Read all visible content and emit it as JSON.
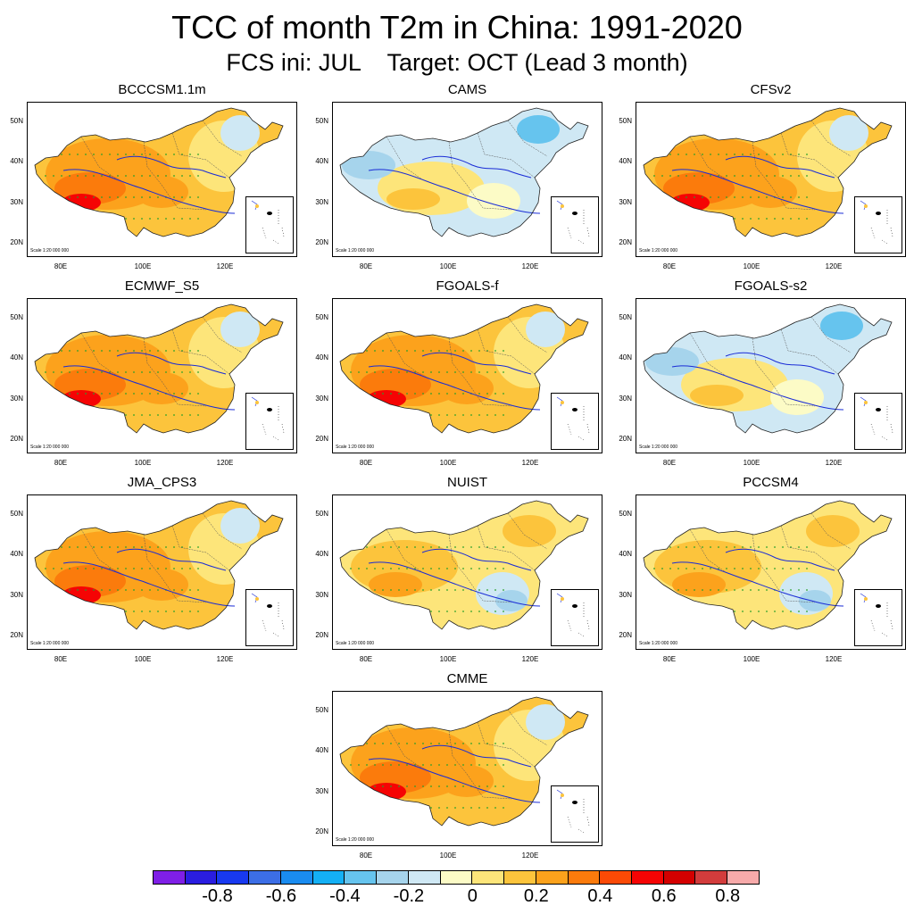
{
  "title": "TCC of month T2m in China: 1991-2020",
  "subtitle": "FCS ini: JUL    Target: OCT (Lead 3 month)",
  "lat_labels": [
    "50N",
    "40N",
    "30N",
    "20N"
  ],
  "lon_labels": [
    "80E",
    "100E",
    "120E"
  ],
  "scale_text": "Scale 1:20 000 000",
  "panels": [
    {
      "name": "BCCCSM1.1m",
      "skill": "high"
    },
    {
      "name": "CAMS",
      "skill": "low"
    },
    {
      "name": "CFSv2",
      "skill": "high"
    },
    {
      "name": "ECMWF_S5",
      "skill": "high"
    },
    {
      "name": "FGOALS-f",
      "skill": "high"
    },
    {
      "name": "FGOALS-s2",
      "skill": "low"
    },
    {
      "name": "JMA_CPS3",
      "skill": "high"
    },
    {
      "name": "NUIST",
      "skill": "mid"
    },
    {
      "name": "PCCSM4",
      "skill": "mid"
    },
    {
      "name": "CMME",
      "skill": "high"
    }
  ],
  "colorbar": {
    "colors": [
      "#7f1fe6",
      "#2a1de0",
      "#1839f0",
      "#3c6ee6",
      "#1a8cf0",
      "#14b0f5",
      "#66c4ee",
      "#a6d4ec",
      "#cfe8f4",
      "#fcfbc6",
      "#fde57a",
      "#fcc43c",
      "#fca21c",
      "#fb7b0c",
      "#fb4a06",
      "#f50404",
      "#d40000",
      "#d23c3c",
      "#f7aaaa"
    ],
    "labels": [
      "-0.8",
      "-0.6",
      "-0.4",
      "-0.2",
      "0",
      "0.2",
      "0.4",
      "0.6",
      "0.8"
    ]
  }
}
